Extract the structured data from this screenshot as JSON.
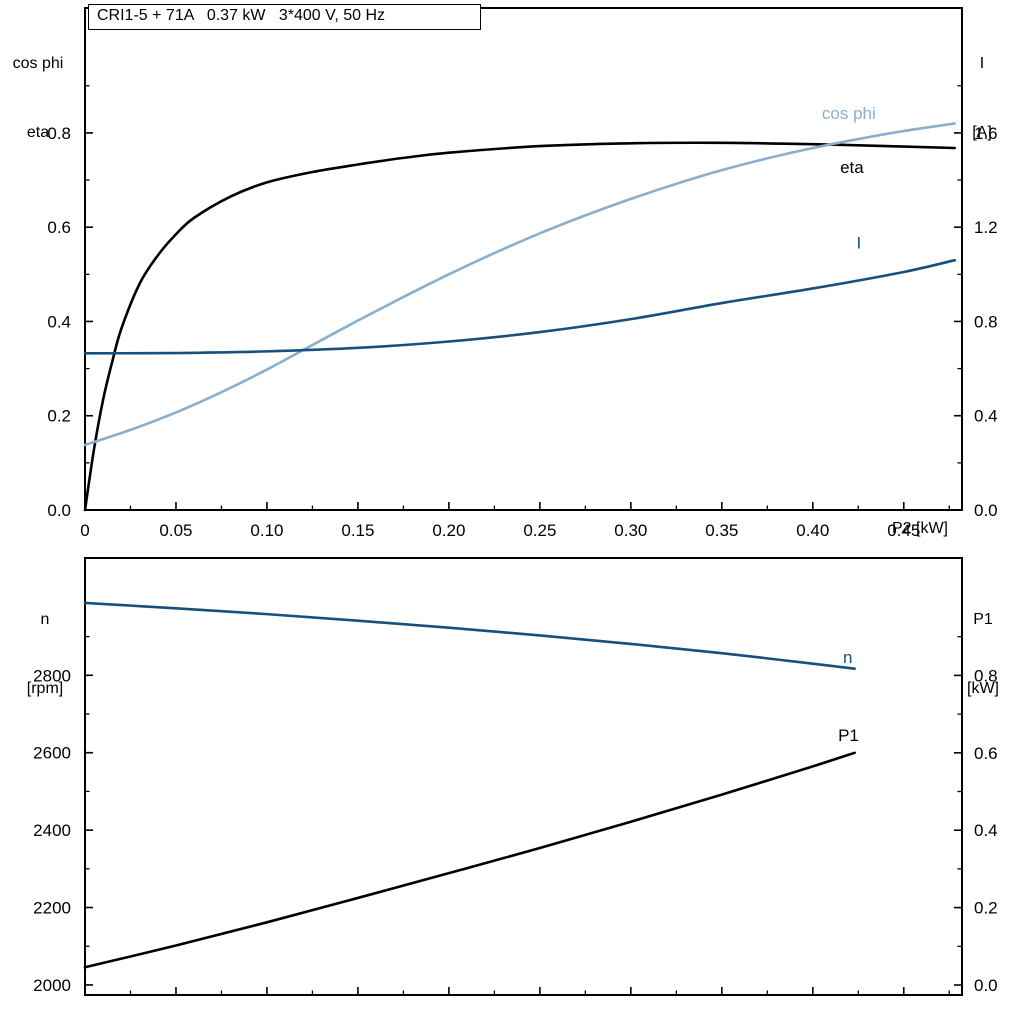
{
  "colors": {
    "frame": "#000000",
    "curve_black": "#000000",
    "curve_dark_blue": "#17507d",
    "curve_light_blue": "#8aaecd"
  },
  "chart_data": [
    {
      "type": "line",
      "title": "CRI1-5 + 71A   0.37 kW   3*400 V, 50 Hz",
      "x_axis": {
        "min": 0,
        "max": 0.482,
        "label": "P2 [kW]",
        "ticks": [
          {
            "v": 0,
            "label": "0"
          },
          {
            "v": 0.05,
            "label": "0.05"
          },
          {
            "v": 0.1,
            "label": "0.10"
          },
          {
            "v": 0.15,
            "label": "0.15"
          },
          {
            "v": 0.2,
            "label": "0.20"
          },
          {
            "v": 0.25,
            "label": "0.25"
          },
          {
            "v": 0.3,
            "label": "0.30"
          },
          {
            "v": 0.35,
            "label": "0.35"
          },
          {
            "v": 0.4,
            "label": "0.40"
          },
          {
            "v": 0.45,
            "label": "0.45"
          }
        ],
        "minor": [
          0.025,
          0.075,
          0.125,
          0.175,
          0.225,
          0.275,
          0.325,
          0.375,
          0.425,
          0.475
        ]
      },
      "left_axis": {
        "label_lines": [
          "cos phi",
          "eta"
        ],
        "min": 0,
        "max": 1.065,
        "ticks": [
          {
            "v": 0.0,
            "label": "0.0"
          },
          {
            "v": 0.2,
            "label": "0.2"
          },
          {
            "v": 0.4,
            "label": "0.4"
          },
          {
            "v": 0.6,
            "label": "0.6"
          },
          {
            "v": 0.8,
            "label": "0.8"
          }
        ],
        "minor": [
          0.1,
          0.3,
          0.5,
          0.7,
          0.9
        ]
      },
      "right_axis": {
        "label_lines": [
          "I",
          "[A]"
        ],
        "min": 0,
        "max": 2.13,
        "ticks": [
          {
            "v": 0.0,
            "label": "0.0"
          },
          {
            "v": 0.4,
            "label": "0.4"
          },
          {
            "v": 0.8,
            "label": "0.8"
          },
          {
            "v": 1.2,
            "label": "1.2"
          },
          {
            "v": 1.6,
            "label": "1.6"
          }
        ],
        "minor": [
          0.2,
          0.6,
          1.0,
          1.4,
          1.8
        ]
      },
      "series": [
        {
          "name": "eta",
          "label": "eta",
          "axis": "left",
          "color": "#000000",
          "label_at": {
            "x": 0.415,
            "v": 0.715
          },
          "points": [
            [
              0,
              0.0
            ],
            [
              0.005,
              0.13
            ],
            [
              0.01,
              0.235
            ],
            [
              0.015,
              0.315
            ],
            [
              0.02,
              0.385
            ],
            [
              0.03,
              0.48
            ],
            [
              0.04,
              0.54
            ],
            [
              0.05,
              0.585
            ],
            [
              0.06,
              0.62
            ],
            [
              0.08,
              0.665
            ],
            [
              0.1,
              0.695
            ],
            [
              0.125,
              0.717
            ],
            [
              0.15,
              0.733
            ],
            [
              0.175,
              0.747
            ],
            [
              0.2,
              0.758
            ],
            [
              0.25,
              0.772
            ],
            [
              0.3,
              0.778
            ],
            [
              0.35,
              0.779
            ],
            [
              0.4,
              0.776
            ],
            [
              0.45,
              0.771
            ],
            [
              0.478,
              0.768
            ]
          ]
        },
        {
          "name": "cos phi",
          "label": "cos phi",
          "axis": "left",
          "color": "#8aaecd",
          "label_at": {
            "x": 0.405,
            "v": 0.83
          },
          "points": [
            [
              0,
              0.138
            ],
            [
              0.025,
              0.17
            ],
            [
              0.05,
              0.207
            ],
            [
              0.075,
              0.25
            ],
            [
              0.1,
              0.298
            ],
            [
              0.125,
              0.35
            ],
            [
              0.15,
              0.402
            ],
            [
              0.175,
              0.452
            ],
            [
              0.2,
              0.5
            ],
            [
              0.225,
              0.545
            ],
            [
              0.25,
              0.587
            ],
            [
              0.275,
              0.625
            ],
            [
              0.3,
              0.66
            ],
            [
              0.325,
              0.692
            ],
            [
              0.35,
              0.721
            ],
            [
              0.375,
              0.746
            ],
            [
              0.4,
              0.768
            ],
            [
              0.425,
              0.787
            ],
            [
              0.45,
              0.804
            ],
            [
              0.478,
              0.82
            ]
          ]
        },
        {
          "name": "I",
          "label": "I",
          "axis": "right",
          "color": "#17507d",
          "label_at": {
            "x": 0.424,
            "v": 1.11
          },
          "points": [
            [
              0,
              0.665
            ],
            [
              0.05,
              0.666
            ],
            [
              0.1,
              0.673
            ],
            [
              0.15,
              0.688
            ],
            [
              0.2,
              0.715
            ],
            [
              0.25,
              0.755
            ],
            [
              0.3,
              0.81
            ],
            [
              0.35,
              0.878
            ],
            [
              0.4,
              0.94
            ],
            [
              0.45,
              1.01
            ],
            [
              0.478,
              1.06
            ]
          ]
        }
      ]
    },
    {
      "type": "line",
      "x_axis": {
        "min": 0,
        "max": 0.482,
        "label": "",
        "ticks": [
          {
            "v": 0,
            "label": ""
          },
          {
            "v": 0.05,
            "label": ""
          },
          {
            "v": 0.1,
            "label": ""
          },
          {
            "v": 0.15,
            "label": ""
          },
          {
            "v": 0.2,
            "label": ""
          },
          {
            "v": 0.25,
            "label": ""
          },
          {
            "v": 0.3,
            "label": ""
          },
          {
            "v": 0.35,
            "label": ""
          },
          {
            "v": 0.4,
            "label": ""
          },
          {
            "v": 0.45,
            "label": ""
          }
        ],
        "minor": [
          0.025,
          0.075,
          0.125,
          0.175,
          0.225,
          0.275,
          0.325,
          0.375,
          0.425,
          0.475
        ]
      },
      "left_axis": {
        "label_lines": [
          "n",
          "[rpm]"
        ],
        "min": 1974,
        "max": 3103,
        "ticks": [
          {
            "v": 2000,
            "label": "2000"
          },
          {
            "v": 2200,
            "label": "2200"
          },
          {
            "v": 2400,
            "label": "2400"
          },
          {
            "v": 2600,
            "label": "2600"
          },
          {
            "v": 2800,
            "label": "2800"
          }
        ],
        "minor": [
          2100,
          2300,
          2500,
          2700,
          2900
        ]
      },
      "right_axis": {
        "label_lines": [
          "P1",
          "[kW]"
        ],
        "min": -0.0258,
        "max": 1.1034,
        "ticks": [
          {
            "v": 0.0,
            "label": "0.0"
          },
          {
            "v": 0.2,
            "label": "0.2"
          },
          {
            "v": 0.4,
            "label": "0.4"
          },
          {
            "v": 0.6,
            "label": "0.6"
          },
          {
            "v": 0.8,
            "label": "0.8"
          }
        ],
        "minor": [
          0.1,
          0.3,
          0.5,
          0.7,
          0.9
        ]
      },
      "series": [
        {
          "name": "n",
          "label": "n",
          "axis": "left",
          "color": "#17507d",
          "label_at": {
            "x": 0.4166,
            "v": 2832
          },
          "points": [
            [
              0,
              2987
            ],
            [
              0.05,
              2973
            ],
            [
              0.1,
              2958
            ],
            [
              0.15,
              2941
            ],
            [
              0.2,
              2923
            ],
            [
              0.25,
              2903
            ],
            [
              0.3,
              2881
            ],
            [
              0.35,
              2857
            ],
            [
              0.4,
              2830
            ],
            [
              0.423,
              2817
            ]
          ]
        },
        {
          "name": "P1",
          "label": "P1",
          "axis": "right",
          "color": "#000000",
          "label_at": {
            "x": 0.4139,
            "v": 0.63
          },
          "points": [
            [
              0,
              0.046
            ],
            [
              0.05,
              0.102
            ],
            [
              0.1,
              0.162
            ],
            [
              0.15,
              0.225
            ],
            [
              0.2,
              0.289
            ],
            [
              0.25,
              0.354
            ],
            [
              0.3,
              0.422
            ],
            [
              0.35,
              0.492
            ],
            [
              0.4,
              0.565
            ],
            [
              0.423,
              0.6
            ]
          ]
        }
      ]
    }
  ]
}
